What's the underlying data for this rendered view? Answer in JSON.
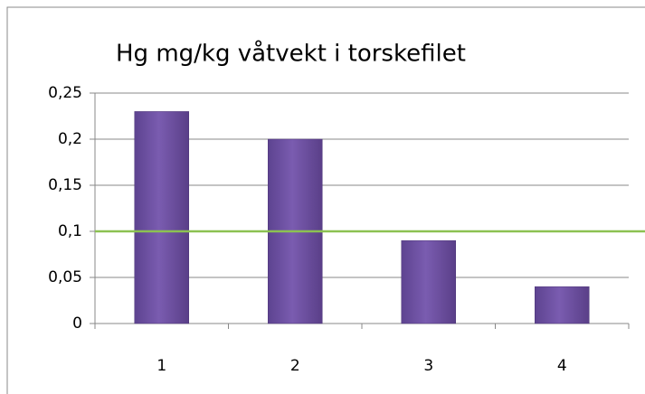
{
  "chart_data": {
    "type": "bar",
    "title": "Hg mg/kg våtvekt i torskefilet",
    "categories": [
      "1",
      "2",
      "3",
      "4"
    ],
    "values": [
      0.23,
      0.2,
      0.09,
      0.04
    ],
    "color": "#6e51a0",
    "ylim": [
      0,
      0.25
    ],
    "yticks": [
      0,
      {
        "value": 0.05,
        "label": "0,05"
      },
      {
        "value": 0.1,
        "label": "0,1"
      },
      {
        "value": 0.15,
        "label": "0,15"
      },
      {
        "value": 0.2,
        "label": "0,2"
      },
      {
        "value": 0.25,
        "label": "0,25"
      }
    ],
    "grid": true,
    "reference_line": {
      "value": 0.1,
      "color": "#8cc152"
    }
  }
}
